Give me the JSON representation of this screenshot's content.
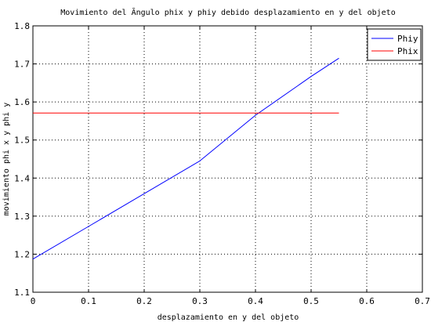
{
  "chart_data": {
    "type": "line",
    "title": "Movimiento del Ãngulo phix  y phiy debido desplazamiento en y del objeto",
    "xlabel": "desplazamiento en y del objeto",
    "ylabel": "movimiento phi x y phi y",
    "xlim": [
      0,
      0.7
    ],
    "ylim": [
      1.1,
      1.8
    ],
    "xticks": [
      0,
      0.1,
      0.2,
      0.3,
      0.4,
      0.5,
      0.6,
      0.7
    ],
    "xtick_labels": [
      "0",
      "0.1",
      "0.2",
      "0.3",
      "0.4",
      "0.5",
      "0.6",
      "0.7"
    ],
    "yticks": [
      1.1,
      1.2,
      1.3,
      1.4,
      1.5,
      1.6,
      1.7,
      1.8
    ],
    "ytick_labels": [
      "1.1",
      "1.2",
      "1.3",
      "1.4",
      "1.5",
      "1.6",
      "1.7",
      "1.8"
    ],
    "grid": true,
    "legend_position": "top-right",
    "series": [
      {
        "name": "Phiy",
        "color": "#0000ff",
        "x": [
          0,
          0.1,
          0.2,
          0.3,
          0.4,
          0.5,
          0.55
        ],
        "y": [
          1.187,
          1.273,
          1.359,
          1.445,
          1.565,
          1.667,
          1.715
        ]
      },
      {
        "name": "Phix",
        "color": "#ff0000",
        "x": [
          0,
          0.55
        ],
        "y": [
          1.571,
          1.571
        ]
      }
    ]
  }
}
